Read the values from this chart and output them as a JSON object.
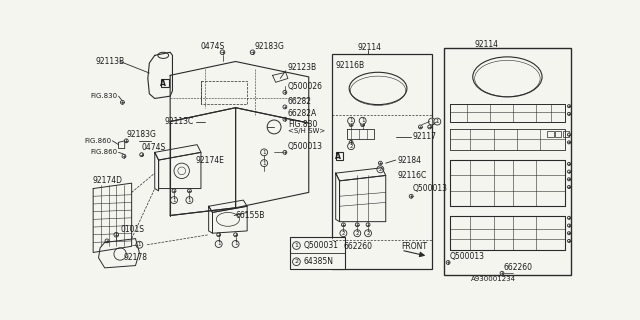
{
  "bg_color": "#f5f5f0",
  "line_color": "#2a2a2a",
  "text_color": "#1a1a1a",
  "legend": [
    {
      "num": "1",
      "code": "Q500031"
    },
    {
      "num": "2",
      "code": "64385N"
    }
  ],
  "title_note": "A930001234"
}
